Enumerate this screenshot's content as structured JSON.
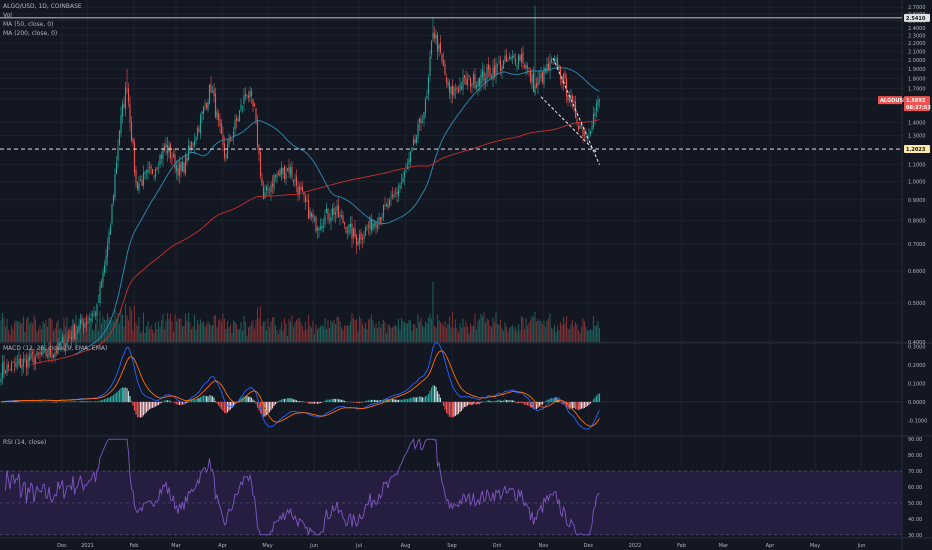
{
  "header": {
    "title": "ALGO/USD, 1D, COINBASE",
    "vol_label": "Vol",
    "ma50_label": "MA (50, close, 0)",
    "ma200_label": "MA (200, close, 0)"
  },
  "macd_label": "MACD (12, 26, close, 9, EMA, EMA)",
  "rsi_label": "RSI (14, close)",
  "price_tags": {
    "resistance": "2.5410",
    "support": "1.2023",
    "symbol": "ALGOUSD",
    "last_price": "1.5892",
    "countdown": "08:37:53"
  },
  "colors": {
    "background": "#131722",
    "grid": "#1f2433",
    "up": "#26a69a",
    "down": "#ef5350",
    "ma50": "#2b8fb5",
    "ma200": "#c9302c",
    "macd_line": "#2962ff",
    "signal_line": "#ff6d00",
    "rsi_line": "#7e57c2",
    "rsi_band": "#2a2148",
    "level_line": "#ffffff"
  },
  "chart_data": [
    {
      "type": "candlestick",
      "title": "ALGO/USD, 1D, COINBASE",
      "x_tick_labels": [
        "Dec",
        "2021",
        "Feb",
        "Mar",
        "Apr",
        "May",
        "Jun",
        "Jul",
        "Aug",
        "Sep",
        "Oct",
        "Nov",
        "Dec",
        "2022",
        "Feb",
        "Mar",
        "Apr",
        "May",
        "Jun"
      ],
      "y_tick_labels": [
        "2.7000",
        "2.6000",
        "2.5000",
        "2.4000",
        "2.3000",
        "2.2000",
        "2.1000",
        "2.0000",
        "1.9000",
        "1.8000",
        "1.7000",
        "1.6000",
        "1.4000",
        "1.3000",
        "1.1000",
        "1.0000",
        "0.9000",
        "0.8000",
        "0.7000",
        "0.6000",
        "0.5000",
        "0.4000"
      ],
      "y_scale": "log",
      "ylim": [
        0.4,
        2.75
      ],
      "date_range": [
        "2020-11-25",
        "2021-12-29"
      ],
      "key_points": [
        {
          "date": "2020-11-25",
          "close": 0.34
        },
        {
          "date": "2020-12-31",
          "close": 0.38
        },
        {
          "date": "2021-01-28",
          "close": 0.48
        },
        {
          "date": "2021-02-05",
          "close": 0.72
        },
        {
          "date": "2021-02-12",
          "close": 1.35
        },
        {
          "date": "2021-02-17",
          "close": 1.75
        },
        {
          "date": "2021-02-23",
          "close": 0.98
        },
        {
          "date": "2021-03-05",
          "close": 1.05
        },
        {
          "date": "2021-03-15",
          "close": 1.22
        },
        {
          "date": "2021-03-25",
          "close": 1.05
        },
        {
          "date": "2021-04-05",
          "close": 1.35
        },
        {
          "date": "2021-04-14",
          "close": 1.72
        },
        {
          "date": "2021-04-23",
          "close": 1.15
        },
        {
          "date": "2021-05-08",
          "close": 1.68
        },
        {
          "date": "2021-05-13",
          "close": 1.48
        },
        {
          "date": "2021-05-19",
          "close": 0.9
        },
        {
          "date": "2021-05-26",
          "close": 1.02
        },
        {
          "date": "2021-06-05",
          "close": 1.08
        },
        {
          "date": "2021-06-22",
          "close": 0.78
        },
        {
          "date": "2021-07-05",
          "close": 0.85
        },
        {
          "date": "2021-07-20",
          "close": 0.72
        },
        {
          "date": "2021-08-01",
          "close": 0.8
        },
        {
          "date": "2021-08-12",
          "close": 0.88
        },
        {
          "date": "2021-08-22",
          "close": 1.05
        },
        {
          "date": "2021-08-28",
          "close": 1.25
        },
        {
          "date": "2021-09-05",
          "close": 1.6
        },
        {
          "date": "2021-09-09",
          "close": 2.4
        },
        {
          "date": "2021-09-13",
          "close": 2.1
        },
        {
          "date": "2021-09-20",
          "close": 1.65
        },
        {
          "date": "2021-09-29",
          "close": 1.75
        },
        {
          "date": "2021-10-10",
          "close": 1.8
        },
        {
          "date": "2021-10-25",
          "close": 1.95
        },
        {
          "date": "2021-11-07",
          "close": 2.05
        },
        {
          "date": "2021-11-16",
          "close": 1.7
        },
        {
          "date": "2021-11-24",
          "close": 1.9
        },
        {
          "date": "2021-12-01",
          "close": 1.95
        },
        {
          "date": "2021-12-08",
          "close": 1.65
        },
        {
          "date": "2021-12-15",
          "close": 1.4
        },
        {
          "date": "2021-12-20",
          "close": 1.3
        },
        {
          "date": "2021-12-25",
          "close": 1.45
        },
        {
          "date": "2021-12-29",
          "close": 1.59
        }
      ],
      "levels": [
        2.541,
        1.2023
      ],
      "last_price": 1.5892
    },
    {
      "type": "line",
      "title": "MACD (12, 26, close, 9, EMA, EMA)",
      "y_tick_labels": [
        "0.3000",
        "0.2000",
        "0.1000",
        "0.0000",
        "-0.1000"
      ],
      "ylim": [
        -0.18,
        0.32
      ]
    },
    {
      "type": "line",
      "title": "RSI (14, close)",
      "y_tick_labels": [
        "90.00",
        "80.00",
        "70.00",
        "60.00",
        "50.00",
        "40.00",
        "30.00"
      ],
      "ylim": [
        28,
        92
      ],
      "band": [
        30,
        70
      ]
    }
  ]
}
